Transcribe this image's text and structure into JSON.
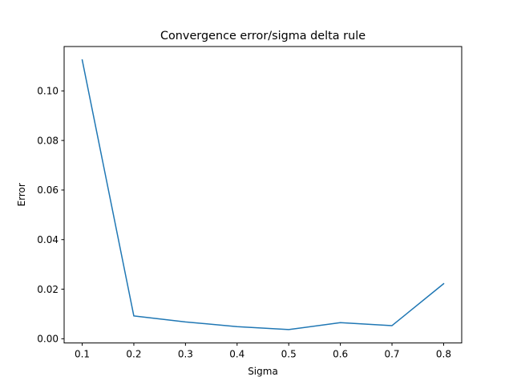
{
  "chart_data": {
    "type": "line",
    "title": "Convergence error/sigma delta rule",
    "xlabel": "Sigma",
    "ylabel": "Error",
    "x": [
      0.1,
      0.2,
      0.3,
      0.4,
      0.5,
      0.6,
      0.7,
      0.8
    ],
    "series": [
      {
        "name": "Error",
        "color": "#1f77b4",
        "values": [
          0.1125,
          0.0092,
          0.0068,
          0.0049,
          0.0037,
          0.0065,
          0.0053,
          0.0222
        ]
      }
    ],
    "xlim": [
      0.065,
      0.835
    ],
    "ylim": [
      -0.0017,
      0.1179
    ],
    "xticks": [
      0.1,
      0.2,
      0.3,
      0.4,
      0.5,
      0.6,
      0.7,
      0.8
    ],
    "xtick_labels": [
      "0.1",
      "0.2",
      "0.3",
      "0.4",
      "0.5",
      "0.6",
      "0.7",
      "0.8"
    ],
    "yticks": [
      0.0,
      0.02,
      0.04,
      0.06,
      0.08,
      0.1
    ],
    "ytick_labels": [
      "0.00",
      "0.02",
      "0.04",
      "0.06",
      "0.08",
      "0.10"
    ],
    "grid": false,
    "legend": "none"
  }
}
